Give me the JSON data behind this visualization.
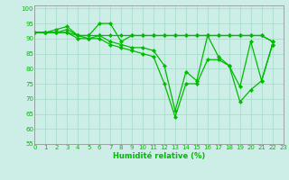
{
  "xlabel": "Humidité relative (%)",
  "bg_color": "#cceee6",
  "grid_color": "#aaddcc",
  "line_color": "#00bb00",
  "ylim": [
    55,
    101
  ],
  "xlim": [
    0,
    23
  ],
  "yticks": [
    55,
    60,
    65,
    70,
    75,
    80,
    85,
    90,
    95,
    100
  ],
  "xticks": [
    0,
    1,
    2,
    3,
    4,
    5,
    6,
    7,
    8,
    9,
    10,
    11,
    12,
    13,
    14,
    15,
    16,
    17,
    18,
    19,
    20,
    21,
    22,
    23
  ],
  "lines": [
    [
      92,
      92,
      92,
      93,
      91,
      91,
      91,
      91,
      91,
      91,
      91,
      91,
      91,
      91,
      91,
      91,
      91,
      91,
      91,
      91,
      91,
      91,
      89
    ],
    [
      92,
      92,
      93,
      94,
      91,
      91,
      95,
      95,
      89,
      91,
      91,
      91,
      91,
      91,
      91,
      91,
      91,
      91,
      91,
      91,
      91,
      91,
      89
    ],
    [
      92,
      92,
      92,
      92,
      91,
      90,
      91,
      89,
      88,
      87,
      87,
      86,
      81,
      66,
      79,
      76,
      91,
      84,
      81,
      74,
      89,
      76,
      88
    ],
    [
      92,
      92,
      92,
      92,
      90,
      90,
      90,
      88,
      87,
      86,
      85,
      84,
      75,
      64,
      75,
      75,
      83,
      83,
      81,
      69,
      73,
      76,
      88
    ]
  ]
}
